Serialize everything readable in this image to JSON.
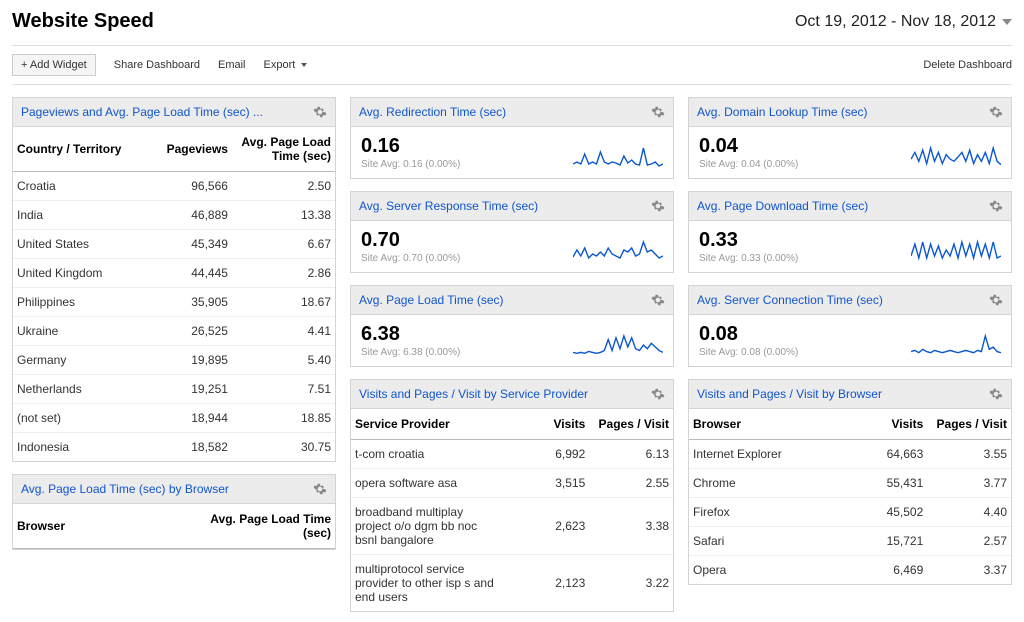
{
  "page": {
    "title": "Website Speed",
    "date_range": "Oct 19, 2012 - Nov 18, 2012"
  },
  "toolbar": {
    "add_widget": "+ Add Widget",
    "share_dashboard": "Share Dashboard",
    "email": "Email",
    "export": "Export",
    "delete_dashboard": "Delete Dashboard"
  },
  "sparkline": {
    "stroke_color": "#0b57d0",
    "stroke_width": 1.4
  },
  "col1": {
    "w1": {
      "title": "Pageviews and Avg. Page Load Time (sec) ...",
      "headers": [
        "Country / Territory",
        "Pageviews",
        "Avg. Page Load Time (sec)"
      ],
      "rows": [
        [
          "Croatia",
          "96,566",
          "2.50"
        ],
        [
          "India",
          "46,889",
          "13.38"
        ],
        [
          "United States",
          "45,349",
          "6.67"
        ],
        [
          "United Kingdom",
          "44,445",
          "2.86"
        ],
        [
          "Philippines",
          "35,905",
          "18.67"
        ],
        [
          "Ukraine",
          "26,525",
          "4.41"
        ],
        [
          "Germany",
          "19,895",
          "5.40"
        ],
        [
          "Netherlands",
          "19,251",
          "7.51"
        ],
        [
          "(not set)",
          "18,944",
          "18.85"
        ],
        [
          "Indonesia",
          "18,582",
          "30.75"
        ]
      ]
    },
    "w2": {
      "title": "Avg. Page Load Time (sec) by Browser",
      "headers": [
        "Browser",
        "Avg. Page Load Time (sec)"
      ]
    }
  },
  "col2": {
    "m1": {
      "title": "Avg. Redirection Time (sec)",
      "value": "0.16",
      "sub": "Site Avg: 0.16 (0.00%)",
      "spark": [
        4,
        6,
        4,
        14,
        4,
        6,
        4,
        16,
        6,
        4,
        6,
        5,
        3,
        12,
        5,
        8,
        4,
        3,
        20,
        3,
        4,
        6,
        2,
        4
      ]
    },
    "m2": {
      "title": "Avg. Server Response Time (sec)",
      "value": "0.70",
      "sub": "Site Avg: 0.70 (0.00%)",
      "spark": [
        5,
        12,
        6,
        14,
        4,
        8,
        6,
        10,
        6,
        14,
        8,
        6,
        4,
        12,
        10,
        14,
        6,
        8,
        20,
        10,
        12,
        8,
        4,
        6
      ]
    },
    "m3": {
      "title": "Avg. Page Load Time (sec)",
      "value": "6.38",
      "sub": "Site Avg: 6.38 (0.00%)",
      "spark": [
        4,
        3,
        4,
        3,
        5,
        4,
        3,
        4,
        6,
        18,
        6,
        20,
        8,
        22,
        10,
        20,
        8,
        6,
        12,
        8,
        14,
        10,
        6,
        4
      ]
    },
    "w_table": {
      "title": "Visits and Pages / Visit by Service Provider",
      "headers": [
        "Service Provider",
        "Visits",
        "Pages / Visit"
      ],
      "rows": [
        [
          "t-com croatia",
          "6,992",
          "6.13"
        ],
        [
          "opera software asa",
          "3,515",
          "2.55"
        ],
        [
          "broadband multiplay project o/o dgm bb noc bsnl bangalore",
          "2,623",
          "3.38"
        ],
        [
          "multiprotocol service provider to other isp s and end users",
          "2,123",
          "3.22"
        ]
      ]
    }
  },
  "col3": {
    "m1": {
      "title": "Avg. Domain Lookup Time (sec)",
      "value": "0.04",
      "sub": "Site Avg: 0.04 (0.00%)",
      "spark": [
        8,
        14,
        6,
        16,
        4,
        18,
        6,
        14,
        4,
        12,
        8,
        6,
        10,
        14,
        6,
        16,
        4,
        12,
        6,
        14,
        4,
        18,
        6,
        3
      ]
    },
    "m2": {
      "title": "Avg. Page Download Time (sec)",
      "value": "0.33",
      "sub": "Site Avg: 0.33 (0.00%)",
      "spark": [
        6,
        18,
        4,
        20,
        4,
        18,
        6,
        16,
        4,
        12,
        6,
        18,
        4,
        20,
        6,
        18,
        4,
        20,
        6,
        18,
        4,
        20,
        4,
        6
      ]
    },
    "m3": {
      "title": "Avg. Server Connection Time (sec)",
      "value": "0.08",
      "sub": "Site Avg: 0.08 (0.00%)",
      "spark": [
        4,
        5,
        3,
        6,
        4,
        3,
        5,
        4,
        3,
        4,
        5,
        4,
        3,
        4,
        5,
        4,
        3,
        5,
        4,
        18,
        6,
        8,
        4,
        3
      ]
    },
    "w_table": {
      "title": "Visits and Pages / Visit by Browser",
      "headers": [
        "Browser",
        "Visits",
        "Pages / Visit"
      ],
      "rows": [
        [
          "Internet Explorer",
          "64,663",
          "3.55"
        ],
        [
          "Chrome",
          "55,431",
          "3.77"
        ],
        [
          "Firefox",
          "45,502",
          "4.40"
        ],
        [
          "Safari",
          "15,721",
          "2.57"
        ],
        [
          "Opera",
          "6,469",
          "3.37"
        ]
      ]
    }
  }
}
